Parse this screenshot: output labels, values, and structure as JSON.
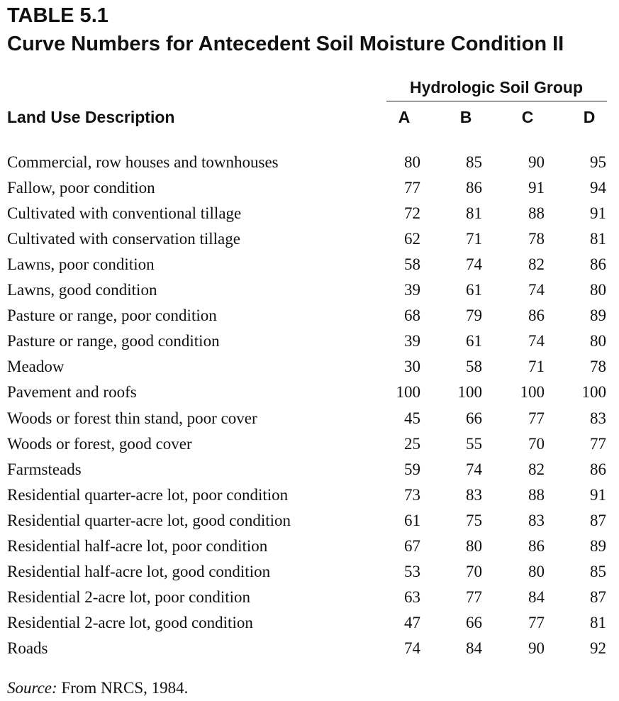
{
  "header": {
    "label": "TABLE 5.1",
    "title": "Curve Numbers for Antecedent Soil Moisture Condition II"
  },
  "table": {
    "group_header": "Hydrologic Soil Group",
    "columns": [
      "Land Use Description",
      "A",
      "B",
      "C",
      "D"
    ],
    "rows": [
      [
        "Commercial, row houses and townhouses",
        80,
        85,
        90,
        95
      ],
      [
        "Fallow, poor condition",
        77,
        86,
        91,
        94
      ],
      [
        "Cultivated with conventional tillage",
        72,
        81,
        88,
        91
      ],
      [
        "Cultivated with conservation tillage",
        62,
        71,
        78,
        81
      ],
      [
        "Lawns, poor condition",
        58,
        74,
        82,
        86
      ],
      [
        "Lawns, good condition",
        39,
        61,
        74,
        80
      ],
      [
        "Pasture or range, poor condition",
        68,
        79,
        86,
        89
      ],
      [
        "Pasture or range, good condition",
        39,
        61,
        74,
        80
      ],
      [
        "Meadow",
        30,
        58,
        71,
        78
      ],
      [
        "Pavement and roofs",
        100,
        100,
        100,
        100
      ],
      [
        "Woods or forest thin stand, poor cover",
        45,
        66,
        77,
        83
      ],
      [
        "Woods or forest, good cover",
        25,
        55,
        70,
        77
      ],
      [
        "Farmsteads",
        59,
        74,
        82,
        86
      ],
      [
        "Residential quarter-acre lot, poor condition",
        73,
        83,
        88,
        91
      ],
      [
        "Residential quarter-acre lot, good condition",
        61,
        75,
        83,
        87
      ],
      [
        "Residential half-acre lot, poor condition",
        67,
        80,
        86,
        89
      ],
      [
        "Residential half-acre lot, good condition",
        53,
        70,
        80,
        85
      ],
      [
        "Residential 2-acre lot, poor condition",
        63,
        77,
        84,
        87
      ],
      [
        "Residential 2-acre lot, good condition",
        47,
        66,
        77,
        81
      ],
      [
        "Roads",
        74,
        84,
        90,
        92
      ]
    ]
  },
  "footnote": {
    "label": "Source:",
    "text": "From NRCS, 1984."
  }
}
